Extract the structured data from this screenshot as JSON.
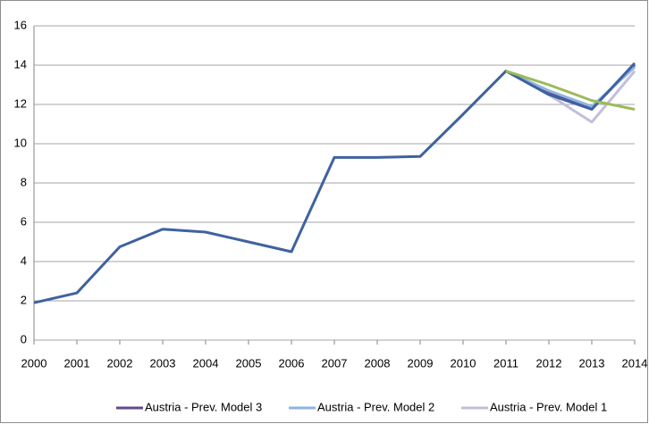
{
  "chart_data": {
    "type": "line",
    "categories": [
      "2000",
      "2001",
      "2002",
      "2003",
      "2004",
      "2005",
      "2006",
      "2007",
      "2008",
      "2009",
      "2010",
      "2011",
      "2012",
      "2013",
      "2014"
    ],
    "series": [
      {
        "name": "Austria - Prev. Model 3",
        "color": "#5f4b8b",
        "values": [
          null,
          null,
          null,
          null,
          null,
          null,
          null,
          null,
          null,
          null,
          null,
          13.7,
          12.6,
          11.8,
          14.0
        ]
      },
      {
        "name": "Austria - Prev. Model 2",
        "color": "#8eb4e3",
        "values": [
          null,
          null,
          null,
          null,
          null,
          null,
          null,
          null,
          null,
          null,
          null,
          13.7,
          12.7,
          11.9,
          13.9
        ]
      },
      {
        "name": "Austria - Prev. Model 1",
        "color": "#c3bddb",
        "values": [
          null,
          null,
          null,
          null,
          null,
          null,
          null,
          null,
          null,
          null,
          null,
          13.7,
          12.5,
          11.1,
          13.7
        ]
      },
      {
        "color": "#3f62a0",
        "values": [
          1.9,
          2.4,
          4.75,
          5.65,
          5.5,
          5.0,
          4.5,
          9.3,
          9.3,
          9.35,
          11.5,
          13.7,
          12.5,
          11.75,
          14.1
        ]
      },
      {
        "color": "#9bbb59",
        "values": [
          null,
          null,
          null,
          null,
          null,
          null,
          null,
          null,
          null,
          null,
          null,
          13.7,
          13.0,
          12.2,
          11.75
        ]
      }
    ],
    "ylim": [
      0,
      16
    ],
    "yticks": [
      0,
      2,
      4,
      6,
      8,
      10,
      12,
      14,
      16
    ],
    "grid": true
  }
}
